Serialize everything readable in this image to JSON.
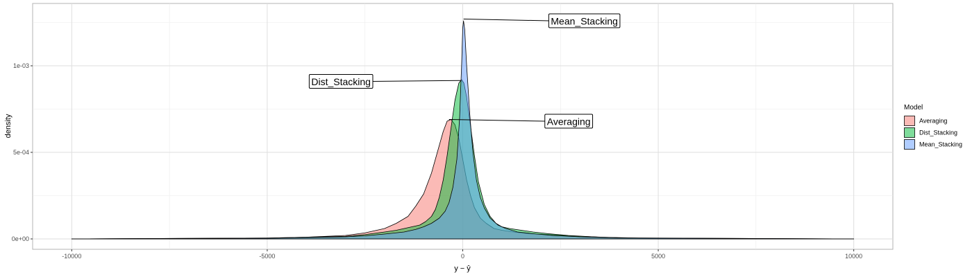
{
  "chart_data": {
    "type": "area",
    "xlabel": "y − ŷ",
    "ylabel": "density",
    "xlim": [
      -11000,
      11000
    ],
    "ylim": [
      -6e-05,
      0.00136
    ],
    "x_ticks": [
      -10000,
      -5000,
      0,
      5000,
      10000
    ],
    "x_tick_labels": [
      "-10000",
      "-5000",
      "0",
      "5000",
      "10000"
    ],
    "y_ticks": [
      0,
      0.0005,
      0.001
    ],
    "y_tick_labels": [
      "0e+00",
      "5e-04",
      "1e-03"
    ],
    "grid": true,
    "legend": {
      "title": "Model",
      "position": "right"
    },
    "series": [
      {
        "name": "Averaging",
        "color": "#F8766D",
        "points": [
          [
            -10000,
            0
          ],
          [
            -5000,
            5e-06
          ],
          [
            -4000,
            1e-05
          ],
          [
            -3000,
            2e-05
          ],
          [
            -2500,
            3.5e-05
          ],
          [
            -2000,
            6e-05
          ],
          [
            -1700,
            9e-05
          ],
          [
            -1400,
            0.00013
          ],
          [
            -1200,
            0.00019
          ],
          [
            -1000,
            0.00026
          ],
          [
            -800,
            0.00038
          ],
          [
            -650,
            0.0005
          ],
          [
            -500,
            0.00062
          ],
          [
            -400,
            0.00068
          ],
          [
            -300,
            0.00069
          ],
          [
            -200,
            0.00066
          ],
          [
            -100,
            0.00058
          ],
          [
            0,
            0.00046
          ],
          [
            100,
            0.00034
          ],
          [
            200,
            0.00025
          ],
          [
            300,
            0.00018
          ],
          [
            450,
            0.00012
          ],
          [
            600,
            9e-05
          ],
          [
            800,
            6e-05
          ],
          [
            1000,
            5e-05
          ],
          [
            1300,
            4e-05
          ],
          [
            1700,
            3e-05
          ],
          [
            2200,
            2.5e-05
          ],
          [
            3000,
            1.5e-05
          ],
          [
            4000,
            6e-06
          ],
          [
            5000,
            3e-06
          ],
          [
            10000,
            0
          ]
        ]
      },
      {
        "name": "Dist_Stacking",
        "color": "#00BA38",
        "points": [
          [
            -10000,
            0
          ],
          [
            -5000,
            5e-06
          ],
          [
            -4000,
            1e-05
          ],
          [
            -3000,
            1.5e-05
          ],
          [
            -2500,
            2.5e-05
          ],
          [
            -2000,
            4e-05
          ],
          [
            -1700,
            5e-05
          ],
          [
            -1500,
            6e-05
          ],
          [
            -1300,
            7e-05
          ],
          [
            -1100,
            8e-05
          ],
          [
            -950,
            0.0001
          ],
          [
            -800,
            0.00013
          ],
          [
            -700,
            0.00017
          ],
          [
            -600,
            0.00024
          ],
          [
            -500,
            0.00034
          ],
          [
            -400,
            0.00048
          ],
          [
            -300,
            0.00064
          ],
          [
            -200,
            0.0008
          ],
          [
            -100,
            0.0009
          ],
          [
            -30,
            0.00092
          ],
          [
            30,
            0.0009
          ],
          [
            100,
            0.00082
          ],
          [
            200,
            0.00065
          ],
          [
            300,
            0.00048
          ],
          [
            400,
            0.00033
          ],
          [
            550,
            0.0002
          ],
          [
            700,
            0.00013
          ],
          [
            850,
            9e-05
          ],
          [
            1000,
            7e-05
          ],
          [
            1200,
            6e-05
          ],
          [
            1500,
            5e-05
          ],
          [
            1800,
            4e-05
          ],
          [
            2200,
            3e-05
          ],
          [
            2700,
            2e-05
          ],
          [
            3500,
            1e-05
          ],
          [
            4500,
            5e-06
          ],
          [
            10000,
            0
          ]
        ]
      },
      {
        "name": "Mean_Stacking",
        "color": "#619CFF",
        "points": [
          [
            -10000,
            0
          ],
          [
            -5000,
            4e-06
          ],
          [
            -4000,
            8e-06
          ],
          [
            -3000,
            1.2e-05
          ],
          [
            -2500,
            1.8e-05
          ],
          [
            -2000,
            2.8e-05
          ],
          [
            -1500,
            4e-05
          ],
          [
            -1200,
            5.5e-05
          ],
          [
            -1000,
            7e-05
          ],
          [
            -800,
            9e-05
          ],
          [
            -600,
            0.00012
          ],
          [
            -450,
            0.00016
          ],
          [
            -350,
            0.00021
          ],
          [
            -250,
            0.0003
          ],
          [
            -150,
            0.00046
          ],
          [
            -80,
            0.0007
          ],
          [
            -30,
            0.001
          ],
          [
            0,
            0.00122
          ],
          [
            20,
            0.00126
          ],
          [
            50,
            0.00121
          ],
          [
            100,
            0.001
          ],
          [
            180,
            0.00072
          ],
          [
            260,
            0.0005
          ],
          [
            350,
            0.00034
          ],
          [
            450,
            0.00024
          ],
          [
            550,
            0.00018
          ],
          [
            700,
            0.00012
          ],
          [
            900,
            8e-05
          ],
          [
            1100,
            6e-05
          ],
          [
            1400,
            4e-05
          ],
          [
            1800,
            3e-05
          ],
          [
            2300,
            2e-05
          ],
          [
            3000,
            1.2e-05
          ],
          [
            4000,
            6e-06
          ],
          [
            10000,
            0
          ]
        ]
      }
    ],
    "annotations": [
      {
        "text": "Mean_Stacking",
        "x_from": 20,
        "y_from": 0.00127,
        "x_to": 2200,
        "y_to": 0.00126
      },
      {
        "text": "Dist_Stacking",
        "x_from": -40,
        "y_from": 0.000915,
        "x_to": -2300,
        "y_to": 0.00091
      },
      {
        "text": "Averaging",
        "x_from": -350,
        "y_from": 0.00069,
        "x_to": 2100,
        "y_to": 0.00068
      }
    ]
  }
}
